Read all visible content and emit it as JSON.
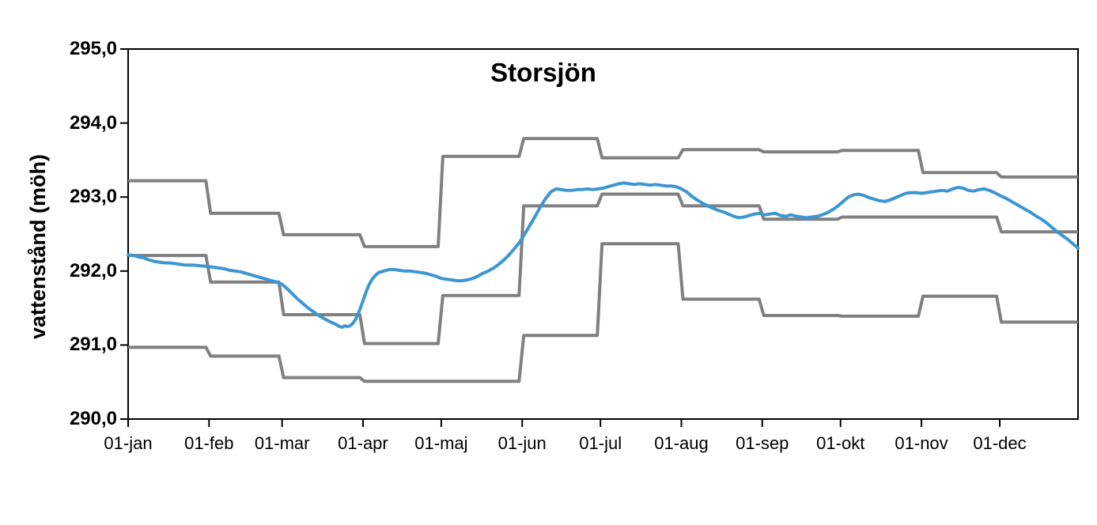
{
  "chart_data": {
    "type": "line",
    "title": "Storsjön",
    "xlabel": "",
    "ylabel": "vattenstånd (möh)",
    "ylim": [
      290.0,
      295.0
    ],
    "y_axis": {
      "tick_labels": [
        "295,0",
        "294,0",
        "293,0",
        "292,0",
        "291,0",
        "290,0"
      ],
      "tick_values": [
        295,
        294,
        293,
        292,
        291,
        290
      ],
      "decimal_separator": ","
    },
    "x_axis": {
      "unit": "day-of-year",
      "tick_labels": [
        "01-jan",
        "01-feb",
        "01-mar",
        "01-apr",
        "01-maj",
        "01-jun",
        "01-jul",
        "01-aug",
        "01-sep",
        "01-okt",
        "01-nov",
        "01-dec"
      ],
      "month_start_days": [
        0,
        31,
        59,
        90,
        120,
        151,
        181,
        212,
        243,
        273,
        304,
        334
      ],
      "last_day": 364
    },
    "grid": "off",
    "legend": "none",
    "categories": [
      "jan",
      "feb",
      "mar",
      "apr",
      "maj",
      "jun",
      "jul",
      "aug",
      "sep",
      "okt",
      "nov",
      "dec"
    ],
    "series": [
      {
        "name": "upper_limit_step_line",
        "style": "gray-step",
        "monthly_values": [
          293.22,
          292.78,
          292.49,
          292.33,
          293.55,
          293.79,
          293.53,
          293.64,
          293.61,
          293.63,
          293.33,
          293.27
        ]
      },
      {
        "name": "middle_step_line",
        "style": "gray-step",
        "monthly_values": [
          292.21,
          291.85,
          291.41,
          291.02,
          291.67,
          292.88,
          293.04,
          292.88,
          292.7,
          292.73,
          292.73,
          292.53
        ]
      },
      {
        "name": "lower_limit_step_line",
        "style": "gray-step",
        "monthly_values": [
          290.97,
          290.85,
          290.56,
          290.51,
          290.51,
          291.13,
          292.37,
          291.62,
          291.4,
          291.39,
          291.66,
          291.31
        ]
      },
      {
        "name": "observed_water_level",
        "style": "blue-daily",
        "points": [
          [
            0,
            292.22
          ],
          [
            2,
            292.21
          ],
          [
            4,
            292.19
          ],
          [
            6,
            292.18
          ],
          [
            8,
            292.15
          ],
          [
            10,
            292.13
          ],
          [
            12,
            292.12
          ],
          [
            14,
            292.11
          ],
          [
            16,
            292.11
          ],
          [
            18,
            292.1
          ],
          [
            20,
            292.09
          ],
          [
            22,
            292.08
          ],
          [
            25,
            292.08
          ],
          [
            28,
            292.07
          ],
          [
            31,
            292.06
          ],
          [
            33,
            292.05
          ],
          [
            35,
            292.04
          ],
          [
            37,
            292.03
          ],
          [
            39,
            292.01
          ],
          [
            41,
            292.0
          ],
          [
            43,
            291.99
          ],
          [
            45,
            291.97
          ],
          [
            47,
            291.95
          ],
          [
            49,
            291.93
          ],
          [
            51,
            291.91
          ],
          [
            53,
            291.89
          ],
          [
            55,
            291.87
          ],
          [
            57,
            291.85
          ],
          [
            59,
            291.82
          ],
          [
            61,
            291.76
          ],
          [
            63,
            291.69
          ],
          [
            65,
            291.62
          ],
          [
            67,
            291.56
          ],
          [
            69,
            291.5
          ],
          [
            71,
            291.45
          ],
          [
            73,
            291.4
          ],
          [
            75,
            291.36
          ],
          [
            77,
            291.32
          ],
          [
            79,
            291.29
          ],
          [
            80,
            291.27
          ],
          [
            81,
            291.25
          ],
          [
            82,
            291.24
          ],
          [
            83,
            291.26
          ],
          [
            84,
            291.25
          ],
          [
            85,
            291.26
          ],
          [
            86,
            291.29
          ],
          [
            87,
            291.34
          ],
          [
            88,
            291.41
          ],
          [
            89,
            291.5
          ],
          [
            90,
            291.6
          ],
          [
            91,
            291.7
          ],
          [
            92,
            291.79
          ],
          [
            93,
            291.86
          ],
          [
            94,
            291.91
          ],
          [
            95,
            291.95
          ],
          [
            96,
            291.98
          ],
          [
            98,
            292.0
          ],
          [
            100,
            292.02
          ],
          [
            102,
            292.02
          ],
          [
            104,
            292.01
          ],
          [
            106,
            292.0
          ],
          [
            108,
            292.0
          ],
          [
            110,
            291.99
          ],
          [
            112,
            291.98
          ],
          [
            114,
            291.97
          ],
          [
            116,
            291.95
          ],
          [
            118,
            291.93
          ],
          [
            120,
            291.9
          ],
          [
            122,
            291.89
          ],
          [
            124,
            291.88
          ],
          [
            126,
            291.87
          ],
          [
            128,
            291.87
          ],
          [
            130,
            291.88
          ],
          [
            132,
            291.9
          ],
          [
            134,
            291.93
          ],
          [
            136,
            291.97
          ],
          [
            138,
            292.0
          ],
          [
            140,
            292.04
          ],
          [
            142,
            292.09
          ],
          [
            144,
            292.15
          ],
          [
            146,
            292.22
          ],
          [
            148,
            292.3
          ],
          [
            150,
            292.39
          ],
          [
            152,
            292.5
          ],
          [
            154,
            292.62
          ],
          [
            156,
            292.74
          ],
          [
            158,
            292.87
          ],
          [
            160,
            292.98
          ],
          [
            162,
            293.07
          ],
          [
            164,
            293.11
          ],
          [
            166,
            293.1
          ],
          [
            168,
            293.09
          ],
          [
            170,
            293.09
          ],
          [
            172,
            293.1
          ],
          [
            174,
            293.1
          ],
          [
            176,
            293.11
          ],
          [
            178,
            293.1
          ],
          [
            180,
            293.11
          ],
          [
            182,
            293.12
          ],
          [
            184,
            293.14
          ],
          [
            186,
            293.16
          ],
          [
            188,
            293.18
          ],
          [
            190,
            293.19
          ],
          [
            192,
            293.18
          ],
          [
            194,
            293.17
          ],
          [
            196,
            293.18
          ],
          [
            198,
            293.17
          ],
          [
            200,
            293.16
          ],
          [
            202,
            293.17
          ],
          [
            204,
            293.16
          ],
          [
            206,
            293.15
          ],
          [
            208,
            293.15
          ],
          [
            210,
            293.14
          ],
          [
            212,
            293.11
          ],
          [
            214,
            293.07
          ],
          [
            216,
            293.01
          ],
          [
            218,
            292.96
          ],
          [
            220,
            292.92
          ],
          [
            222,
            292.88
          ],
          [
            224,
            292.85
          ],
          [
            226,
            292.82
          ],
          [
            228,
            292.8
          ],
          [
            230,
            292.77
          ],
          [
            232,
            292.74
          ],
          [
            234,
            292.72
          ],
          [
            236,
            292.73
          ],
          [
            238,
            292.75
          ],
          [
            240,
            292.77
          ],
          [
            242,
            292.78
          ],
          [
            244,
            292.76
          ],
          [
            246,
            292.77
          ],
          [
            248,
            292.78
          ],
          [
            250,
            292.75
          ],
          [
            252,
            292.74
          ],
          [
            254,
            292.76
          ],
          [
            256,
            292.74
          ],
          [
            258,
            292.73
          ],
          [
            260,
            292.72
          ],
          [
            262,
            292.73
          ],
          [
            264,
            292.74
          ],
          [
            266,
            292.76
          ],
          [
            268,
            292.79
          ],
          [
            270,
            292.83
          ],
          [
            272,
            292.88
          ],
          [
            274,
            292.94
          ],
          [
            276,
            293.0
          ],
          [
            278,
            293.03
          ],
          [
            280,
            293.04
          ],
          [
            282,
            293.02
          ],
          [
            284,
            292.99
          ],
          [
            286,
            292.97
          ],
          [
            288,
            292.95
          ],
          [
            290,
            292.94
          ],
          [
            292,
            292.96
          ],
          [
            294,
            292.99
          ],
          [
            296,
            293.02
          ],
          [
            298,
            293.05
          ],
          [
            300,
            293.06
          ],
          [
            302,
            293.06
          ],
          [
            304,
            293.05
          ],
          [
            306,
            293.06
          ],
          [
            308,
            293.07
          ],
          [
            310,
            293.08
          ],
          [
            312,
            293.09
          ],
          [
            314,
            293.08
          ],
          [
            316,
            293.11
          ],
          [
            318,
            293.13
          ],
          [
            320,
            293.12
          ],
          [
            322,
            293.09
          ],
          [
            324,
            293.08
          ],
          [
            326,
            293.1
          ],
          [
            328,
            293.11
          ],
          [
            330,
            293.09
          ],
          [
            332,
            293.06
          ],
          [
            334,
            293.02
          ],
          [
            336,
            292.99
          ],
          [
            338,
            292.95
          ],
          [
            340,
            292.91
          ],
          [
            342,
            292.87
          ],
          [
            344,
            292.83
          ],
          [
            346,
            292.79
          ],
          [
            348,
            292.74
          ],
          [
            350,
            292.7
          ],
          [
            352,
            292.65
          ],
          [
            354,
            292.59
          ],
          [
            356,
            292.53
          ],
          [
            358,
            292.48
          ],
          [
            360,
            292.43
          ],
          [
            362,
            292.37
          ],
          [
            364,
            292.31
          ]
        ]
      }
    ]
  },
  "colors": {
    "observed_line": "#3B96D3",
    "limit_lines": "#808080",
    "axis": "#000000",
    "background": "#FFFFFF"
  }
}
